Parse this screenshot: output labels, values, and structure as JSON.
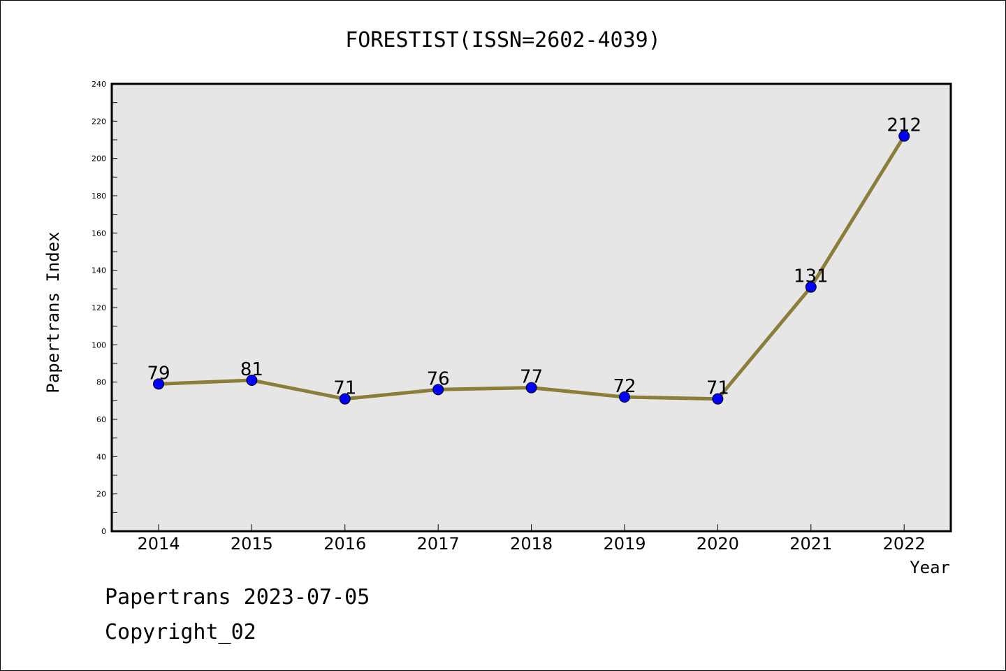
{
  "chart_data": {
    "type": "line",
    "title": "FORESTIST(ISSN=2602-4039)",
    "xlabel": "Year",
    "ylabel": "Papertrans Index",
    "x": [
      "2014",
      "2015",
      "2016",
      "2017",
      "2018",
      "2019",
      "2020",
      "2021",
      "2022"
    ],
    "values": [
      79,
      81,
      71,
      76,
      77,
      72,
      71,
      131,
      212
    ],
    "data_labels": [
      "79",
      "81",
      "71",
      "76",
      "77",
      "72",
      "71",
      "131",
      "212"
    ],
    "ylim": [
      0,
      240
    ],
    "yticks": [
      "0",
      "20",
      "40",
      "60",
      "80",
      "100",
      "120",
      "140",
      "160",
      "180",
      "200",
      "220",
      "240"
    ],
    "grid": false,
    "colors": {
      "line": "#8b7d3a",
      "marker": "#0000ff",
      "plot_bg": "#e6e6e6"
    }
  },
  "footer": {
    "line1": "Papertrans 2023-07-05",
    "line2": "Copyright_02"
  }
}
